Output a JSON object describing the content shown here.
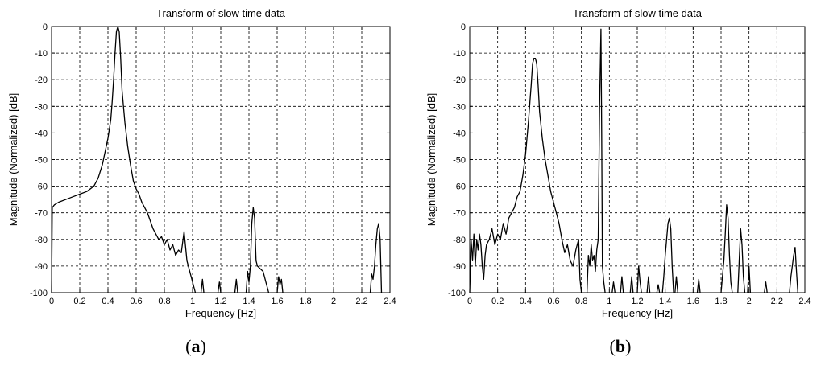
{
  "figure": {
    "caption_a": "a",
    "caption_b": "b"
  },
  "chart_data": [
    {
      "type": "line",
      "panel": "(a)",
      "title": "Transform of slow time data",
      "xlabel": "Frequency [Hz]",
      "ylabel": "Magnitude (Normalized) [dB]",
      "xlim": [
        0,
        2.4
      ],
      "ylim": [
        -100,
        0
      ],
      "xticks": [
        0,
        0.2,
        0.4,
        0.6,
        0.8,
        1,
        1.2,
        1.4,
        1.6,
        1.8,
        2,
        2.2,
        2.4
      ],
      "yticks": [
        0,
        -10,
        -20,
        -30,
        -40,
        -50,
        -60,
        -70,
        -80,
        -90,
        -100
      ],
      "grid": true,
      "series": [
        {
          "color": "#000000",
          "segments": [
            [
              [
                0,
                -100
              ],
              [
                0.005,
                -68
              ],
              [
                0.02,
                -67
              ],
              [
                0.05,
                -66
              ],
              [
                0.1,
                -65
              ],
              [
                0.15,
                -64
              ],
              [
                0.2,
                -63
              ],
              [
                0.25,
                -62
              ],
              [
                0.3,
                -60
              ],
              [
                0.33,
                -57
              ],
              [
                0.36,
                -52
              ],
              [
                0.38,
                -47
              ],
              [
                0.4,
                -42
              ],
              [
                0.42,
                -35
              ],
              [
                0.43,
                -28
              ],
              [
                0.44,
                -20
              ],
              [
                0.45,
                -10
              ],
              [
                0.46,
                -2
              ],
              [
                0.47,
                0
              ],
              [
                0.48,
                -2
              ],
              [
                0.49,
                -12
              ],
              [
                0.5,
                -24
              ],
              [
                0.52,
                -36
              ],
              [
                0.54,
                -45
              ],
              [
                0.56,
                -52
              ],
              [
                0.58,
                -58
              ],
              [
                0.6,
                -61
              ],
              [
                0.62,
                -63
              ],
              [
                0.64,
                -66
              ],
              [
                0.66,
                -68
              ],
              [
                0.68,
                -70
              ],
              [
                0.7,
                -73
              ],
              [
                0.72,
                -76
              ],
              [
                0.74,
                -78
              ],
              [
                0.76,
                -80
              ],
              [
                0.78,
                -79
              ],
              [
                0.8,
                -82
              ],
              [
                0.82,
                -80
              ],
              [
                0.84,
                -84
              ],
              [
                0.86,
                -82
              ],
              [
                0.88,
                -86
              ],
              [
                0.9,
                -84
              ],
              [
                0.92,
                -85
              ],
              [
                0.94,
                -77
              ],
              [
                0.96,
                -88
              ],
              [
                0.98,
                -92
              ],
              [
                1.0,
                -96
              ],
              [
                1.02,
                -100
              ]
            ],
            [
              [
                1.06,
                -100
              ],
              [
                1.07,
                -95
              ],
              [
                1.08,
                -100
              ]
            ],
            [
              [
                1.18,
                -100
              ],
              [
                1.19,
                -96
              ],
              [
                1.2,
                -100
              ]
            ],
            [
              [
                1.3,
                -100
              ],
              [
                1.31,
                -95
              ],
              [
                1.32,
                -100
              ]
            ],
            [
              [
                1.38,
                -100
              ],
              [
                1.39,
                -92
              ],
              [
                1.4,
                -96
              ],
              [
                1.41,
                -90
              ],
              [
                1.42,
                -74
              ],
              [
                1.43,
                -68
              ],
              [
                1.44,
                -72
              ],
              [
                1.45,
                -88
              ],
              [
                1.46,
                -90
              ],
              [
                1.48,
                -91
              ],
              [
                1.5,
                -92
              ],
              [
                1.52,
                -96
              ],
              [
                1.54,
                -100
              ]
            ],
            [
              [
                1.6,
                -100
              ],
              [
                1.61,
                -94
              ],
              [
                1.62,
                -97
              ],
              [
                1.63,
                -95
              ],
              [
                1.64,
                -100
              ]
            ],
            [
              [
                2.26,
                -100
              ],
              [
                2.27,
                -93
              ],
              [
                2.28,
                -95
              ],
              [
                2.29,
                -90
              ],
              [
                2.3,
                -82
              ],
              [
                2.31,
                -76
              ],
              [
                2.32,
                -74
              ],
              [
                2.33,
                -80
              ],
              [
                2.34,
                -100
              ]
            ]
          ]
        }
      ]
    },
    {
      "type": "line",
      "panel": "(b)",
      "title": "Transform of slow time data",
      "xlabel": "Frequency [Hz]",
      "ylabel": "Magnitude (Normalized) [dB]",
      "xlim": [
        0,
        2.4
      ],
      "ylim": [
        -100,
        0
      ],
      "xticks": [
        0,
        0.2,
        0.4,
        0.6,
        0.8,
        1,
        1.2,
        1.4,
        1.6,
        1.8,
        2,
        2.2,
        2.4
      ],
      "yticks": [
        0,
        -10,
        -20,
        -30,
        -40,
        -50,
        -60,
        -70,
        -80,
        -90,
        -100
      ],
      "grid": true,
      "series": [
        {
          "color": "#000000",
          "segments": [
            [
              [
                0,
                -100
              ],
              [
                0.01,
                -80
              ],
              [
                0.02,
                -88
              ],
              [
                0.03,
                -78
              ],
              [
                0.04,
                -90
              ],
              [
                0.05,
                -80
              ],
              [
                0.06,
                -84
              ],
              [
                0.07,
                -78
              ],
              [
                0.08,
                -82
              ],
              [
                0.09,
                -90
              ],
              [
                0.1,
                -95
              ],
              [
                0.11,
                -86
              ],
              [
                0.12,
                -82
              ],
              [
                0.14,
                -80
              ],
              [
                0.16,
                -76
              ],
              [
                0.18,
                -82
              ],
              [
                0.2,
                -78
              ],
              [
                0.22,
                -80
              ],
              [
                0.24,
                -74
              ],
              [
                0.26,
                -78
              ],
              [
                0.28,
                -72
              ],
              [
                0.3,
                -70
              ],
              [
                0.32,
                -68
              ],
              [
                0.34,
                -64
              ],
              [
                0.36,
                -62
              ],
              [
                0.38,
                -56
              ],
              [
                0.4,
                -48
              ],
              [
                0.42,
                -36
              ],
              [
                0.44,
                -22
              ],
              [
                0.45,
                -14
              ],
              [
                0.46,
                -12
              ],
              [
                0.47,
                -12
              ],
              [
                0.48,
                -14
              ],
              [
                0.49,
                -22
              ],
              [
                0.5,
                -32
              ],
              [
                0.52,
                -42
              ],
              [
                0.54,
                -50
              ],
              [
                0.56,
                -56
              ],
              [
                0.58,
                -62
              ],
              [
                0.6,
                -66
              ],
              [
                0.62,
                -70
              ],
              [
                0.64,
                -74
              ],
              [
                0.66,
                -80
              ],
              [
                0.68,
                -85
              ],
              [
                0.7,
                -82
              ],
              [
                0.72,
                -88
              ],
              [
                0.74,
                -90
              ],
              [
                0.76,
                -84
              ],
              [
                0.78,
                -80
              ],
              [
                0.79,
                -95
              ],
              [
                0.8,
                -100
              ]
            ],
            [
              [
                0.84,
                -100
              ],
              [
                0.85,
                -86
              ],
              [
                0.86,
                -90
              ],
              [
                0.87,
                -82
              ],
              [
                0.88,
                -88
              ],
              [
                0.89,
                -86
              ],
              [
                0.9,
                -92
              ],
              [
                0.91,
                -84
              ],
              [
                0.92,
                -80
              ],
              [
                0.93,
                -30
              ],
              [
                0.94,
                -1
              ],
              [
                0.945,
                -40
              ],
              [
                0.95,
                -90
              ],
              [
                0.96,
                -96
              ],
              [
                0.97,
                -100
              ]
            ],
            [
              [
                1.02,
                -100
              ],
              [
                1.03,
                -96
              ],
              [
                1.04,
                -100
              ]
            ],
            [
              [
                1.08,
                -100
              ],
              [
                1.09,
                -94
              ],
              [
                1.1,
                -100
              ]
            ],
            [
              [
                1.15,
                -100
              ],
              [
                1.16,
                -94
              ],
              [
                1.17,
                -100
              ]
            ],
            [
              [
                1.2,
                -100
              ],
              [
                1.21,
                -90
              ],
              [
                1.22,
                -96
              ],
              [
                1.23,
                -100
              ]
            ],
            [
              [
                1.27,
                -100
              ],
              [
                1.28,
                -94
              ],
              [
                1.29,
                -100
              ]
            ],
            [
              [
                1.34,
                -100
              ],
              [
                1.35,
                -97
              ],
              [
                1.36,
                -100
              ]
            ],
            [
              [
                1.38,
                -100
              ],
              [
                1.39,
                -94
              ],
              [
                1.4,
                -86
              ],
              [
                1.41,
                -80
              ],
              [
                1.42,
                -74
              ],
              [
                1.43,
                -72
              ],
              [
                1.44,
                -76
              ],
              [
                1.45,
                -90
              ],
              [
                1.46,
                -100
              ]
            ],
            [
              [
                1.47,
                -100
              ],
              [
                1.48,
                -94
              ],
              [
                1.49,
                -100
              ]
            ],
            [
              [
                1.63,
                -100
              ],
              [
                1.64,
                -95
              ],
              [
                1.65,
                -100
              ]
            ],
            [
              [
                1.8,
                -100
              ],
              [
                1.81,
                -94
              ],
              [
                1.82,
                -88
              ],
              [
                1.83,
                -78
              ],
              [
                1.84,
                -67
              ],
              [
                1.85,
                -72
              ],
              [
                1.86,
                -86
              ],
              [
                1.87,
                -96
              ],
              [
                1.88,
                -100
              ]
            ],
            [
              [
                1.92,
                -100
              ],
              [
                1.93,
                -88
              ],
              [
                1.94,
                -76
              ],
              [
                1.95,
                -82
              ],
              [
                1.96,
                -94
              ],
              [
                1.97,
                -100
              ]
            ],
            [
              [
                1.99,
                -100
              ],
              [
                2.0,
                -90
              ],
              [
                2.01,
                -100
              ]
            ],
            [
              [
                2.11,
                -100
              ],
              [
                2.12,
                -96
              ],
              [
                2.13,
                -100
              ]
            ],
            [
              [
                2.29,
                -100
              ],
              [
                2.3,
                -94
              ],
              [
                2.31,
                -90
              ],
              [
                2.32,
                -86
              ],
              [
                2.33,
                -83
              ],
              [
                2.34,
                -92
              ],
              [
                2.35,
                -100
              ]
            ]
          ]
        }
      ]
    }
  ]
}
